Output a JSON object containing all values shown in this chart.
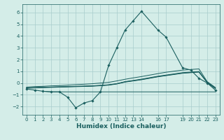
{
  "xlabel": "Humidex (Indice chaleur)",
  "bg_color": "#d4ede8",
  "grid_color": "#a8cccc",
  "line_color": "#1a5f5f",
  "xlim": [
    -0.5,
    23.5
  ],
  "ylim": [
    -2.7,
    6.7
  ],
  "yticks": [
    -2,
    -1,
    0,
    1,
    2,
    3,
    4,
    5,
    6
  ],
  "xticks": [
    0,
    1,
    2,
    3,
    4,
    5,
    6,
    7,
    8,
    9,
    10,
    11,
    12,
    13,
    14,
    16,
    17,
    19,
    20,
    21,
    22,
    23
  ],
  "main_x": [
    0,
    1,
    2,
    3,
    4,
    5,
    6,
    7,
    8,
    9,
    10,
    11,
    12,
    13,
    14,
    16,
    17,
    19,
    20,
    21,
    22,
    23
  ],
  "main_y": [
    -0.5,
    -0.6,
    -0.7,
    -0.75,
    -0.75,
    -1.2,
    -2.1,
    -1.7,
    -1.5,
    -0.75,
    1.5,
    3.0,
    4.5,
    5.3,
    6.1,
    4.5,
    3.9,
    1.3,
    1.1,
    0.4,
    0.0,
    -0.6
  ],
  "flat_x": [
    2,
    3,
    4,
    5,
    6,
    7,
    8,
    9,
    10,
    11,
    12,
    13,
    14,
    16,
    17,
    19,
    20,
    21,
    22,
    23
  ],
  "flat_y": [
    -0.7,
    -0.75,
    -0.75,
    -0.75,
    -0.75,
    -0.75,
    -0.75,
    -0.75,
    -0.75,
    -0.75,
    -0.75,
    -0.75,
    -0.75,
    -0.75,
    -0.75,
    -0.75,
    -0.75,
    -0.75,
    -0.75,
    -0.75
  ],
  "line1_x": [
    0,
    1,
    2,
    3,
    4,
    5,
    6,
    7,
    8,
    9,
    10,
    11,
    12,
    13,
    14,
    16,
    17,
    19,
    20,
    21,
    22,
    23
  ],
  "line1_y": [
    -0.4,
    -0.38,
    -0.36,
    -0.34,
    -0.32,
    -0.3,
    -0.28,
    -0.26,
    -0.24,
    -0.2,
    -0.15,
    -0.05,
    0.1,
    0.2,
    0.3,
    0.55,
    0.65,
    0.85,
    0.9,
    0.95,
    0.05,
    -0.45
  ],
  "line2_x": [
    0,
    1,
    2,
    3,
    4,
    5,
    6,
    7,
    8,
    9,
    10,
    11,
    12,
    13,
    14,
    16,
    17,
    19,
    20,
    21,
    22,
    23
  ],
  "line2_y": [
    -0.42,
    -0.4,
    -0.37,
    -0.35,
    -0.33,
    -0.31,
    -0.29,
    -0.27,
    -0.25,
    -0.21,
    -0.16,
    -0.06,
    0.12,
    0.22,
    0.33,
    0.58,
    0.68,
    0.88,
    0.93,
    0.98,
    0.07,
    -0.43
  ],
  "line3_x": [
    0,
    1,
    2,
    3,
    4,
    5,
    6,
    7,
    8,
    9,
    10,
    11,
    12,
    13,
    14,
    16,
    17,
    19,
    20,
    21,
    22,
    23
  ],
  "line3_y": [
    -0.44,
    -0.42,
    -0.39,
    -0.37,
    -0.35,
    -0.33,
    -0.31,
    -0.29,
    -0.27,
    -0.23,
    -0.18,
    -0.08,
    0.08,
    0.18,
    0.28,
    0.53,
    0.63,
    0.83,
    0.88,
    0.93,
    0.03,
    -0.47
  ],
  "line4_x": [
    0,
    1,
    2,
    3,
    4,
    5,
    6,
    7,
    8,
    9,
    10,
    11,
    12,
    13,
    14,
    16,
    17,
    19,
    20,
    21,
    22,
    23
  ],
  "line4_y": [
    -0.35,
    -0.3,
    -0.28,
    -0.24,
    -0.22,
    -0.18,
    -0.14,
    -0.1,
    -0.06,
    -0.0,
    0.06,
    0.18,
    0.32,
    0.44,
    0.55,
    0.8,
    0.92,
    1.1,
    1.15,
    1.2,
    0.12,
    -0.38
  ]
}
